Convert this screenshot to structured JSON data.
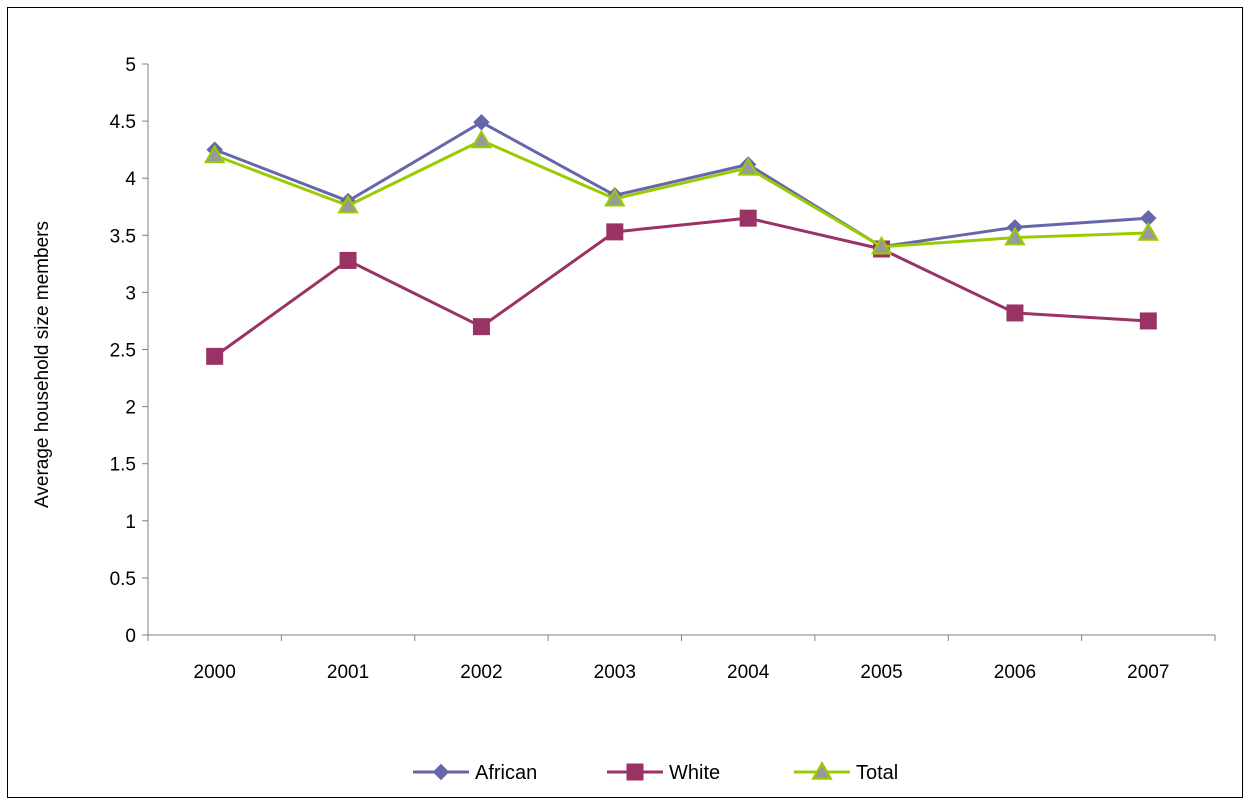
{
  "chart_data": {
    "type": "line",
    "title": "",
    "xlabel": "",
    "ylabel": "Average household size members",
    "categories": [
      "2000",
      "2001",
      "2002",
      "2003",
      "2004",
      "2005",
      "2006",
      "2007"
    ],
    "ylim": [
      0,
      5
    ],
    "yticks": [
      "0",
      "0.5",
      "1",
      "1.5",
      "2",
      "2.5",
      "3",
      "3.5",
      "4",
      "4.5",
      "5"
    ],
    "grid": false,
    "legend_position": "bottom",
    "series": [
      {
        "name": "African",
        "values": [
          4.25,
          3.8,
          4.49,
          3.85,
          4.12,
          3.4,
          3.57,
          3.65
        ],
        "color": "#6666aa",
        "marker": "diamond"
      },
      {
        "name": "White",
        "values": [
          2.44,
          3.28,
          2.7,
          3.53,
          3.65,
          3.38,
          2.82,
          2.75
        ],
        "color": "#993366",
        "marker": "square"
      },
      {
        "name": "Total",
        "values": [
          4.2,
          3.76,
          4.33,
          3.82,
          4.09,
          3.4,
          3.48,
          3.52
        ],
        "color": "#99cc00",
        "marker": "triangle"
      }
    ]
  }
}
